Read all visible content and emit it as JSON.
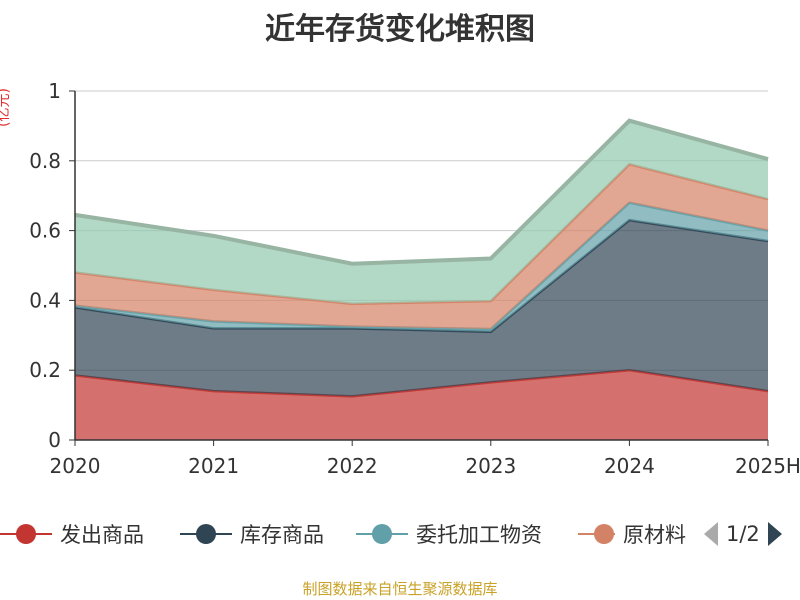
{
  "chart_data": {
    "type": "area",
    "stacked": true,
    "title": "近年存货变化堆积图",
    "ylabel": "(亿元)",
    "categories": [
      "2020",
      "2021",
      "2022",
      "2023",
      "2024",
      "2025H"
    ],
    "ylim": [
      0,
      1
    ],
    "yticks": [
      "0",
      "0.2",
      "0.4",
      "0.6",
      "0.8",
      "1"
    ],
    "grid": true,
    "legend_position": "bottom",
    "series": [
      {
        "name": "发出商品",
        "color": "#c23531",
        "values": [
          0.185,
          0.14,
          0.125,
          0.165,
          0.2,
          0.14
        ]
      },
      {
        "name": "库存商品",
        "color": "#2f4554",
        "values": [
          0.195,
          0.18,
          0.195,
          0.145,
          0.43,
          0.43
        ]
      },
      {
        "name": "委托加工物资",
        "color": "#61a0a8",
        "values": [
          0.005,
          0.02,
          0.005,
          0.008,
          0.05,
          0.03
        ]
      },
      {
        "name": "原材料",
        "color": "#d48265",
        "values": [
          0.095,
          0.09,
          0.065,
          0.08,
          0.11,
          0.09
        ]
      },
      {
        "name": "",
        "color": "#91c7ae",
        "values": [
          0.165,
          0.155,
          0.115,
          0.122,
          0.125,
          0.115
        ]
      }
    ]
  },
  "legend": {
    "items": [
      {
        "label": "发出商品",
        "color": "#c23531"
      },
      {
        "label": "库存商品",
        "color": "#2f4554"
      },
      {
        "label": "委托加工物资",
        "color": "#61a0a8"
      },
      {
        "label": "原材料",
        "color": "#d48265"
      }
    ],
    "page_indicator": "1/2"
  },
  "footer": "制图数据来自恒生聚源数据库"
}
